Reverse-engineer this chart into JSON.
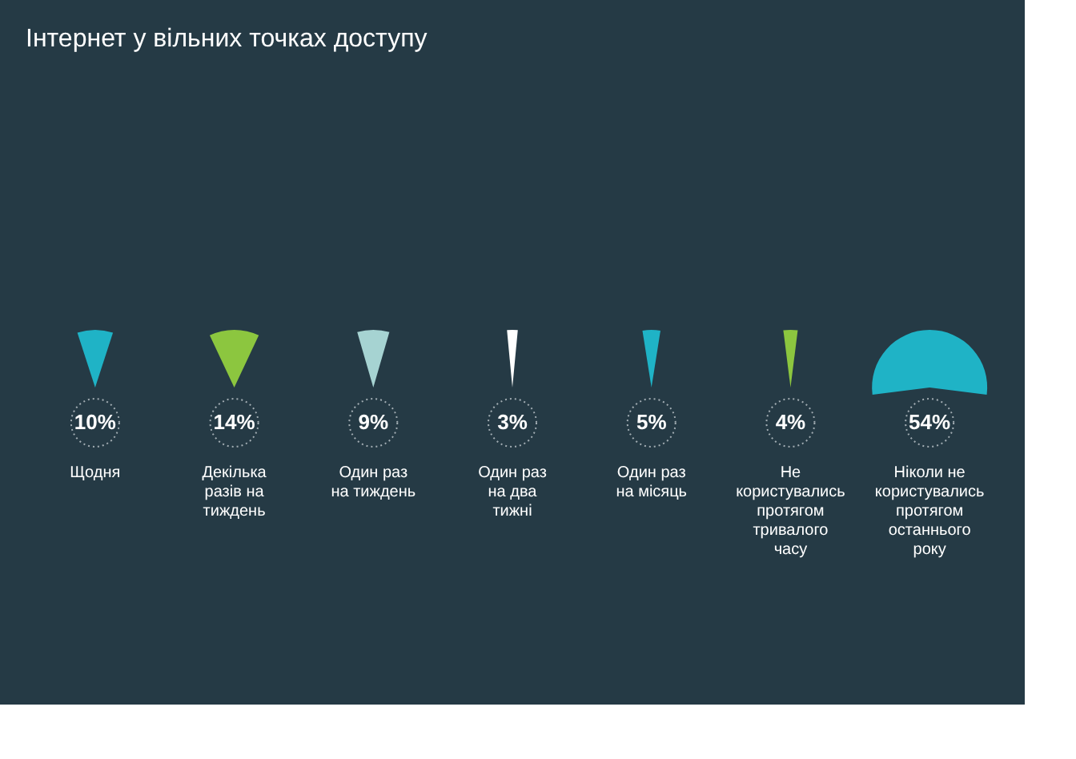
{
  "chart_data": {
    "type": "other",
    "title": "Інтернет у вільних точках доступу",
    "categories": [
      "Щодня",
      "Декілька разів на тиждень",
      "Один раз на тиждень",
      "Один раз на два тижні",
      "Один раз на місяць",
      "Не користувались протягом тривалого часу",
      "Ніколи не користувались протягом останнього року"
    ],
    "values": [
      10,
      14,
      9,
      3,
      5,
      4,
      54
    ],
    "value_labels": [
      "10%",
      "14%",
      "9%",
      "3%",
      "5%",
      "4%",
      "54%"
    ],
    "colors": [
      "#1fb3c6",
      "#8cc63f",
      "#a6d3d2",
      "#ffffff",
      "#1fb3c6",
      "#8cc63f",
      "#1fb3c6"
    ]
  }
}
